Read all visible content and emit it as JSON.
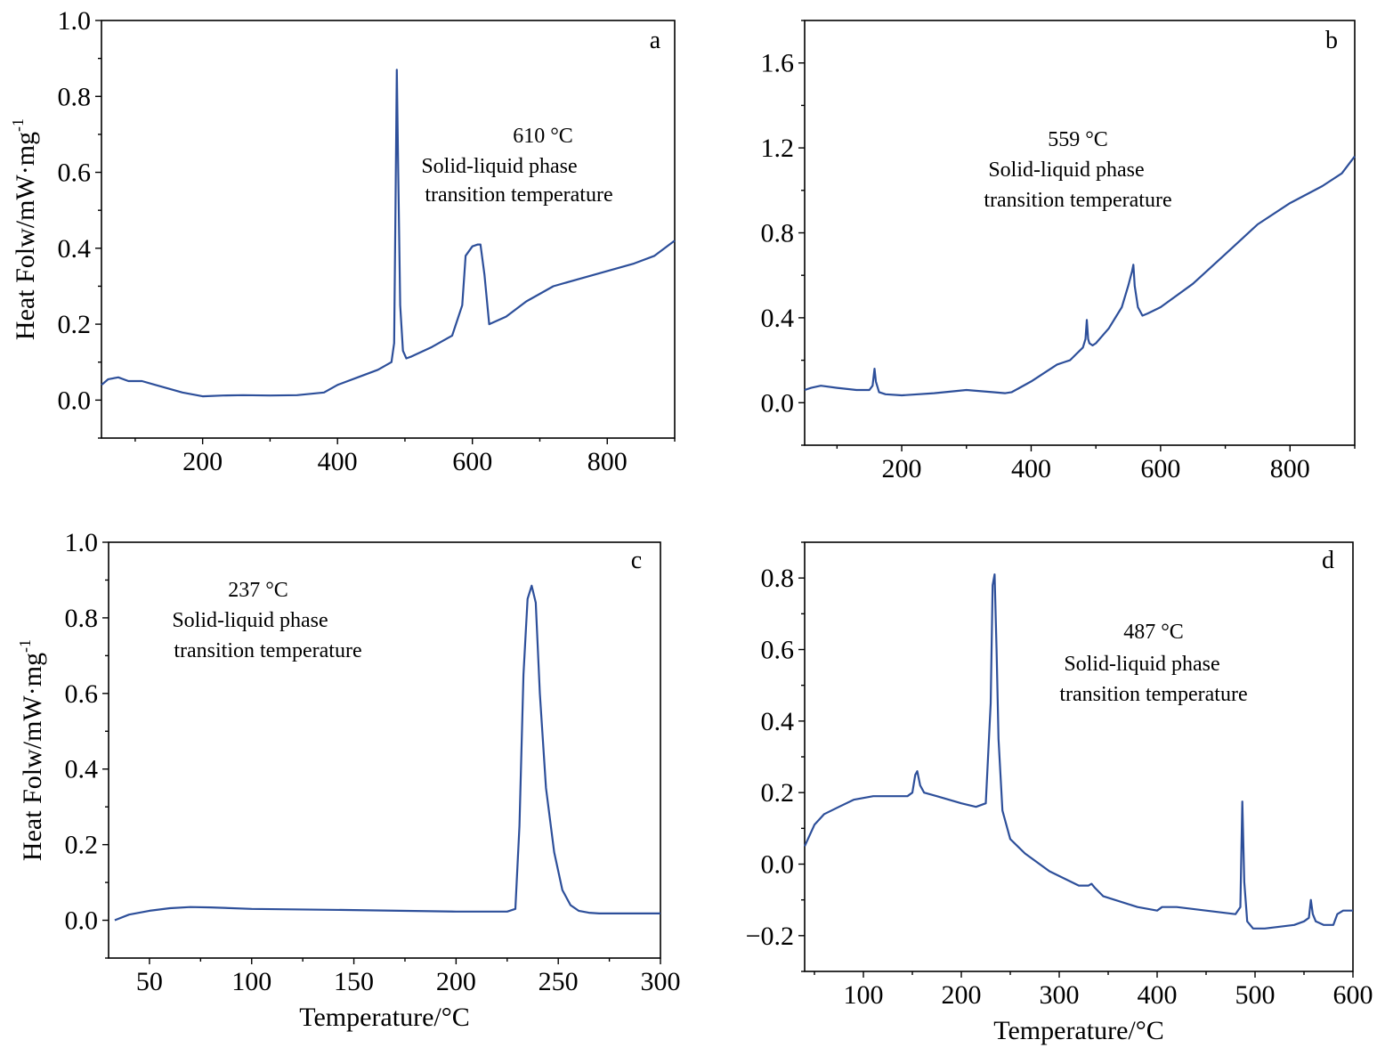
{
  "figure": {
    "panels": [
      {
        "letter": "a",
        "annotation": [
          "610 °C",
          "Solid-liquid phase",
          "transition temperature"
        ]
      },
      {
        "letter": "b",
        "annotation": [
          "559 °C",
          "Solid-liquid phase",
          "transition temperature"
        ]
      },
      {
        "letter": "c",
        "annotation": [
          "237 °C",
          "Solid-liquid phase",
          "transition temperature"
        ]
      },
      {
        "letter": "d",
        "annotation": [
          "487 °C",
          "Solid-liquid phase",
          "transition temperature"
        ]
      }
    ]
  },
  "colors": {
    "line": "#2d4f9a",
    "axis": "#000000"
  },
  "chart_data": [
    {
      "type": "line",
      "panel": "a",
      "title": "",
      "xlabel": "",
      "ylabel": "Heat Folw/mW·mg-1",
      "xlim": [
        50,
        900
      ],
      "ylim": [
        -0.1,
        1.0
      ],
      "xticks": [
        200,
        400,
        600,
        800
      ],
      "yticks": [
        0.0,
        0.2,
        0.4,
        0.6,
        0.8,
        1.0
      ],
      "ytick_decimals": 1,
      "series": [
        {
          "x": [
            50,
            60,
            75,
            90,
            110,
            130,
            150,
            170,
            200,
            230,
            260,
            300,
            340,
            380,
            400,
            430,
            460,
            480,
            484,
            486,
            488,
            490,
            493,
            497,
            502,
            510,
            540,
            570,
            585,
            590,
            600,
            608,
            612,
            618,
            625,
            650,
            680,
            700,
            720,
            760,
            800,
            840,
            870,
            900
          ],
          "y": [
            0.04,
            0.055,
            0.06,
            0.05,
            0.05,
            0.04,
            0.03,
            0.02,
            0.01,
            0.012,
            0.013,
            0.012,
            0.013,
            0.02,
            0.04,
            0.06,
            0.08,
            0.1,
            0.15,
            0.5,
            0.87,
            0.6,
            0.25,
            0.13,
            0.11,
            0.115,
            0.14,
            0.17,
            0.25,
            0.38,
            0.405,
            0.41,
            0.41,
            0.33,
            0.2,
            0.22,
            0.26,
            0.28,
            0.3,
            0.32,
            0.34,
            0.36,
            0.38,
            0.42
          ]
        }
      ]
    },
    {
      "type": "line",
      "panel": "b",
      "title": "",
      "xlabel": "",
      "ylabel": "",
      "xlim": [
        50,
        900
      ],
      "ylim": [
        -0.2,
        1.8
      ],
      "xticks": [
        200,
        400,
        600,
        800
      ],
      "yticks": [
        0.0,
        0.4,
        0.8,
        1.2,
        1.6
      ],
      "ytick_decimals": 1,
      "series": [
        {
          "x": [
            50,
            60,
            75,
            100,
            130,
            150,
            155,
            158,
            160,
            165,
            175,
            200,
            250,
            300,
            340,
            360,
            370,
            400,
            420,
            440,
            450,
            460,
            470,
            480,
            484,
            486,
            488,
            490,
            495,
            500,
            520,
            540,
            550,
            556,
            558,
            560,
            565,
            572,
            580,
            600,
            650,
            700,
            750,
            800,
            850,
            880,
            900
          ],
          "y": [
            0.06,
            0.07,
            0.08,
            0.07,
            0.06,
            0.06,
            0.08,
            0.16,
            0.1,
            0.05,
            0.04,
            0.035,
            0.045,
            0.06,
            0.05,
            0.045,
            0.05,
            0.1,
            0.14,
            0.18,
            0.19,
            0.2,
            0.23,
            0.26,
            0.3,
            0.39,
            0.3,
            0.28,
            0.27,
            0.28,
            0.35,
            0.45,
            0.55,
            0.62,
            0.65,
            0.55,
            0.45,
            0.41,
            0.42,
            0.45,
            0.56,
            0.7,
            0.84,
            0.94,
            1.02,
            1.08,
            1.16
          ]
        }
      ]
    },
    {
      "type": "line",
      "panel": "c",
      "title": "",
      "xlabel": "Temperature/°C",
      "ylabel": "Heat Folw/mW·mg-1",
      "xlim": [
        30,
        300
      ],
      "ylim": [
        -0.1,
        1.0
      ],
      "xticks": [
        50,
        100,
        150,
        200,
        250,
        300
      ],
      "yticks": [
        0.0,
        0.2,
        0.4,
        0.6,
        0.8,
        1.0
      ],
      "ytick_decimals": 1,
      "series": [
        {
          "x": [
            33,
            40,
            50,
            60,
            70,
            80,
            100,
            150,
            200,
            225,
            229,
            231,
            233,
            235,
            237,
            239,
            241,
            244,
            248,
            252,
            256,
            260,
            265,
            270,
            300
          ],
          "y": [
            0.0,
            0.015,
            0.025,
            0.032,
            0.035,
            0.034,
            0.03,
            0.027,
            0.023,
            0.023,
            0.03,
            0.25,
            0.65,
            0.85,
            0.885,
            0.84,
            0.6,
            0.35,
            0.18,
            0.08,
            0.04,
            0.025,
            0.02,
            0.018,
            0.018
          ]
        }
      ]
    },
    {
      "type": "line",
      "panel": "d",
      "title": "",
      "xlabel": "Temperature/°C",
      "ylabel": "",
      "xlim": [
        40,
        600
      ],
      "ylim": [
        -0.3,
        0.9
      ],
      "xticks": [
        100,
        200,
        300,
        400,
        500,
        600
      ],
      "yticks": [
        -0.2,
        0.0,
        0.2,
        0.4,
        0.6,
        0.8
      ],
      "ytick_decimals": 1,
      "series": [
        {
          "x": [
            40,
            50,
            60,
            75,
            90,
            110,
            130,
            145,
            150,
            153,
            155,
            158,
            162,
            175,
            200,
            215,
            225,
            230,
            232,
            234,
            236,
            238,
            242,
            250,
            265,
            290,
            320,
            330,
            333,
            336,
            345,
            380,
            400,
            405,
            420,
            450,
            480,
            485,
            487,
            489,
            492,
            498,
            510,
            540,
            550,
            555,
            557,
            559,
            562,
            570,
            580,
            584,
            590,
            600
          ],
          "y": [
            0.05,
            0.11,
            0.14,
            0.16,
            0.18,
            0.19,
            0.19,
            0.19,
            0.2,
            0.25,
            0.26,
            0.22,
            0.2,
            0.19,
            0.17,
            0.16,
            0.17,
            0.45,
            0.78,
            0.81,
            0.6,
            0.35,
            0.15,
            0.07,
            0.03,
            -0.02,
            -0.06,
            -0.06,
            -0.055,
            -0.065,
            -0.09,
            -0.12,
            -0.13,
            -0.12,
            -0.12,
            -0.13,
            -0.14,
            -0.12,
            0.175,
            -0.05,
            -0.16,
            -0.18,
            -0.18,
            -0.17,
            -0.16,
            -0.15,
            -0.1,
            -0.14,
            -0.16,
            -0.17,
            -0.17,
            -0.14,
            -0.13,
            -0.13
          ]
        }
      ]
    }
  ]
}
